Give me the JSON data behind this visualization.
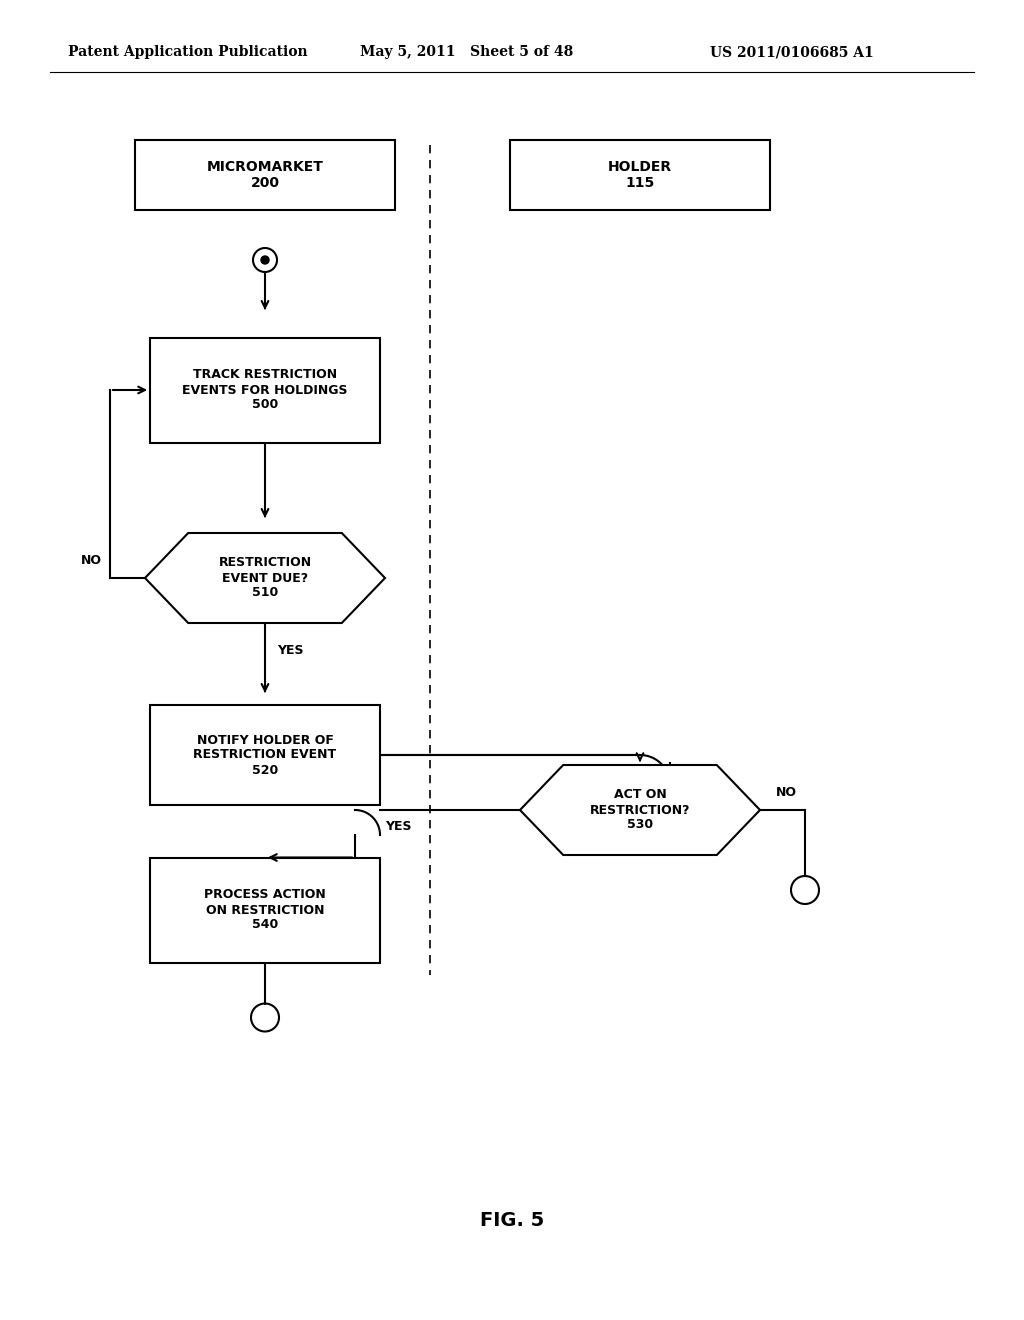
{
  "header_left": "Patent Application Publication",
  "header_mid": "May 5, 2011   Sheet 5 of 48",
  "header_right": "US 2011/0106685 A1",
  "fig_label": "FIG. 5",
  "micromarket_label": "MICROMARKET\n200",
  "holder_label": "HOLDER\n115",
  "box500_label": "TRACK RESTRICTION\nEVENTS FOR HOLDINGS\n500",
  "diamond510_label": "RESTRICTION\nEVENT DUE?\n510",
  "box520_label": "NOTIFY HOLDER OF\nRESTRICTION EVENT\n520",
  "diamond530_label": "ACT ON\nRESTRICTION?\n530",
  "box540_label": "PROCESS ACTION\nON RESTRICTION\n540",
  "bg_color": "#ffffff",
  "line_color": "#000000",
  "text_color": "#000000",
  "font_size": 9,
  "header_font_size": 10
}
